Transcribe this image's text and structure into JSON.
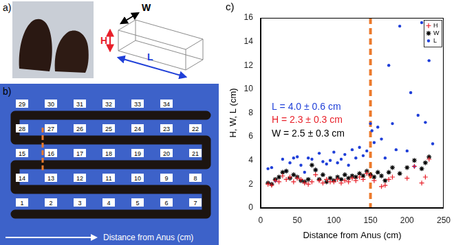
{
  "panel_a": {
    "label": "a)",
    "dimension_labels": [
      "H",
      "W",
      "L"
    ]
  },
  "panel_b": {
    "label": "b)",
    "tags": [
      1,
      2,
      3,
      4,
      5,
      6,
      7,
      8,
      9,
      10,
      11,
      12,
      13,
      14,
      15,
      16,
      17,
      18,
      19,
      20,
      21,
      22,
      23,
      24,
      25,
      26,
      27,
      28,
      29,
      30,
      31,
      32,
      33,
      34
    ],
    "arrow_label": "Distance from Anus (cm)"
  },
  "chart_data": {
    "type": "scatter",
    "title": "c)",
    "x_label": "Distance from Anus (cm)",
    "y_label": "H, W, L (cm)",
    "xlim": [
      0,
      250
    ],
    "xticks": [
      0,
      50,
      100,
      150,
      200,
      250
    ],
    "ylim": [
      0,
      16
    ],
    "yticks": [
      0,
      2,
      4,
      6,
      8,
      10,
      12,
      14,
      16
    ],
    "grid": false,
    "legend": "upper right",
    "series": [
      {
        "name": "H",
        "color": "#e8202a",
        "marker": "plus",
        "x": [
          10,
          15,
          20,
          25,
          30,
          35,
          40,
          45,
          50,
          55,
          60,
          65,
          70,
          75,
          80,
          85,
          90,
          95,
          100,
          105,
          110,
          115,
          120,
          125,
          130,
          135,
          140,
          145,
          150,
          155,
          165,
          170,
          175,
          180,
          200,
          210,
          220,
          225,
          230
        ],
        "values": [
          2.0,
          1.9,
          2.3,
          2.2,
          2.7,
          2.4,
          2.6,
          2.2,
          2.5,
          2.4,
          2.1,
          2.0,
          2.2,
          2.8,
          2.3,
          2.1,
          2.4,
          2.2,
          2.2,
          2.4,
          2.1,
          2.3,
          2.2,
          2.5,
          2.3,
          2.6,
          2.4,
          2.9,
          2.7,
          2.3,
          1.8,
          1.9,
          2.4,
          2.6,
          2.5,
          3.5,
          2.1,
          2.6,
          4.1
        ]
      },
      {
        "name": "W",
        "color": "#000000",
        "marker": "star",
        "x": [
          10,
          15,
          20,
          25,
          30,
          35,
          40,
          45,
          50,
          55,
          60,
          65,
          70,
          75,
          80,
          85,
          90,
          95,
          100,
          105,
          110,
          115,
          120,
          125,
          130,
          135,
          140,
          145,
          150,
          155,
          160,
          165,
          170,
          175,
          180,
          190,
          200,
          210,
          220,
          225,
          230
        ],
        "values": [
          2.1,
          2.0,
          2.4,
          2.6,
          3.0,
          3.1,
          2.5,
          2.8,
          2.6,
          2.3,
          2.2,
          2.4,
          3.6,
          3.2,
          2.4,
          2.8,
          2.2,
          2.5,
          2.3,
          2.6,
          2.4,
          2.8,
          2.5,
          2.7,
          2.6,
          2.9,
          2.7,
          3.1,
          2.8,
          2.6,
          3.0,
          2.7,
          2.3,
          3.0,
          3.4,
          2.9,
          3.4,
          4.0,
          3.3,
          3.8,
          4.3
        ]
      },
      {
        "name": "L",
        "color": "#1f3fd8",
        "marker": "circle",
        "x": [
          10,
          15,
          20,
          30,
          35,
          40,
          45,
          50,
          55,
          60,
          65,
          70,
          75,
          80,
          85,
          90,
          95,
          100,
          105,
          110,
          115,
          120,
          125,
          130,
          135,
          140,
          145,
          150,
          152,
          155,
          160,
          165,
          170,
          175,
          180,
          185,
          190,
          200,
          205,
          210,
          215,
          220,
          225,
          230,
          235
        ],
        "values": [
          3.3,
          3.4,
          2.3,
          4.1,
          3.1,
          3.8,
          4.2,
          4.3,
          3.6,
          3.0,
          4.2,
          4.1,
          3.2,
          4.6,
          3.9,
          3.7,
          4.0,
          4.7,
          3.8,
          4.1,
          4.5,
          3.6,
          4.9,
          4.2,
          5.1,
          4.4,
          4.8,
          7.1,
          6.5,
          5.5,
          6.8,
          5.8,
          4.2,
          12.0,
          7.1,
          4.9,
          15.3,
          4.8,
          9.7,
          3.5,
          7.8,
          15.6,
          7.2,
          12.4,
          5.4
        ]
      }
    ],
    "annotations": [
      {
        "text": "L = 4.0 ± 0.6 cm",
        "color": "#1f3fd8"
      },
      {
        "text": "H = 2.3 ± 0.3 cm",
        "color": "#e8202a"
      },
      {
        "text": "W = 2.5 ± 0.3 cm",
        "color": "#000000"
      }
    ],
    "reference_line": {
      "x": 150,
      "color": "#ec7a2c",
      "line_style": "dashed"
    }
  }
}
